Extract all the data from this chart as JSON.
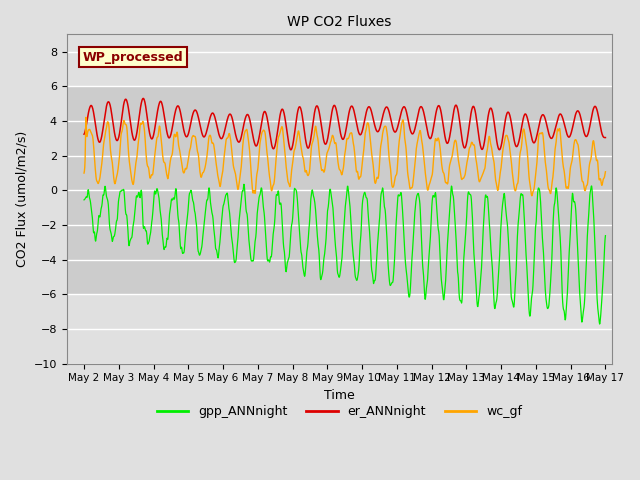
{
  "title": "WP CO2 Fluxes",
  "xlabel": "Time",
  "ylabel": "CO2 Flux (umol/m2/s)",
  "ylim": [
    -10,
    9
  ],
  "xlim_days": [
    1.5,
    17.2
  ],
  "annotation_text": "WP_processed",
  "legend_labels": [
    "gpp_ANNnight",
    "er_ANNnight",
    "wc_gf"
  ],
  "line_colors": {
    "gpp": "#00ee00",
    "er": "#dd0000",
    "wc": "#ffa500"
  },
  "shade_band": [
    -6,
    6
  ],
  "shade_color": "#cccccc",
  "bg_color": "#e0e0e0",
  "tick_labels": [
    "May 2",
    "May 3",
    "May 4",
    "May 5",
    "May 6",
    "May 7",
    "May 8",
    "May 9",
    "May 10",
    "May 11",
    "May 12",
    "May 13",
    "May 14",
    "May 15",
    "May 16",
    "May 17"
  ],
  "tick_positions": [
    2,
    3,
    4,
    5,
    6,
    7,
    8,
    9,
    10,
    11,
    12,
    13,
    14,
    15,
    16,
    17
  ]
}
